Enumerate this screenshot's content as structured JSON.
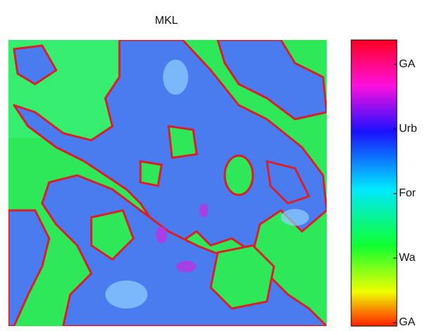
{
  "title": "MKL",
  "colorbar": {
    "labels": [
      "GA",
      "Urb",
      "For",
      "Wa",
      "GA"
    ]
  }
}
